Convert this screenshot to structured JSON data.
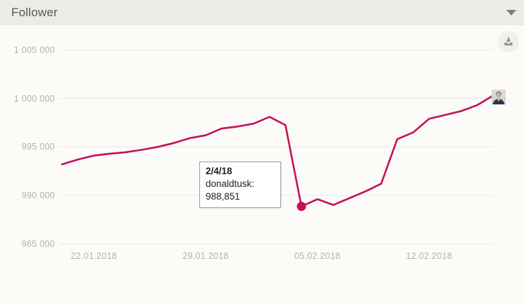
{
  "widget": {
    "title": "Follower"
  },
  "tooltip": {
    "date": "2/4/18",
    "series": "donaldtusk:",
    "value": "988,851"
  },
  "colors": {
    "line": "#c5105c",
    "marker": "#c5105c",
    "grid": "#e9e7e2",
    "axis_text": "#b3b1ac",
    "header_bg": "#edebe5",
    "body_bg": "#fcfbf8",
    "title_text": "#56575c"
  },
  "chart_data": {
    "type": "line",
    "title": "Follower",
    "xlabel": "",
    "ylabel": "",
    "legend": "none",
    "grid": "horizontal",
    "series_name": "donaldtusk",
    "x": [
      "20.01.2018",
      "21.01.2018",
      "22.01.2018",
      "23.01.2018",
      "24.01.2018",
      "25.01.2018",
      "26.01.2018",
      "27.01.2018",
      "28.01.2018",
      "29.01.2018",
      "30.01.2018",
      "31.01.2018",
      "01.02.2018",
      "02.02.2018",
      "03.02.2018",
      "04.02.2018",
      "05.02.2018",
      "06.02.2018",
      "07.02.2018",
      "08.02.2018",
      "09.02.2018",
      "10.02.2018",
      "11.02.2018",
      "12.02.2018",
      "13.02.2018",
      "14.02.2018",
      "15.02.2018",
      "16.02.2018"
    ],
    "values": [
      993200,
      993700,
      994100,
      994300,
      994450,
      994700,
      995000,
      995400,
      995900,
      996200,
      996900,
      997100,
      997400,
      998100,
      997250,
      988851,
      989600,
      989000,
      989700,
      990400,
      991200,
      995800,
      996500,
      997900,
      998300,
      998700,
      999300,
      1000300
    ],
    "ylim": [
      985000,
      1005000
    ],
    "y_ticks": [
      {
        "value": 1005000,
        "label": "1 005 000"
      },
      {
        "value": 1000000,
        "label": "1 000 000"
      },
      {
        "value": 995000,
        "label": "995 000"
      },
      {
        "value": 990000,
        "label": "990 000"
      },
      {
        "value": 985000,
        "label": "985 000"
      }
    ],
    "x_ticks": [
      {
        "index": 2,
        "label": "22.01.2018"
      },
      {
        "index": 9,
        "label": "29.01.2018"
      },
      {
        "index": 16,
        "label": "05.02.2018"
      },
      {
        "index": 23,
        "label": "12.02.2018"
      }
    ],
    "highlight": {
      "index": 15,
      "date": "2/4/18",
      "value": 988851,
      "value_formatted": "988,851"
    }
  }
}
